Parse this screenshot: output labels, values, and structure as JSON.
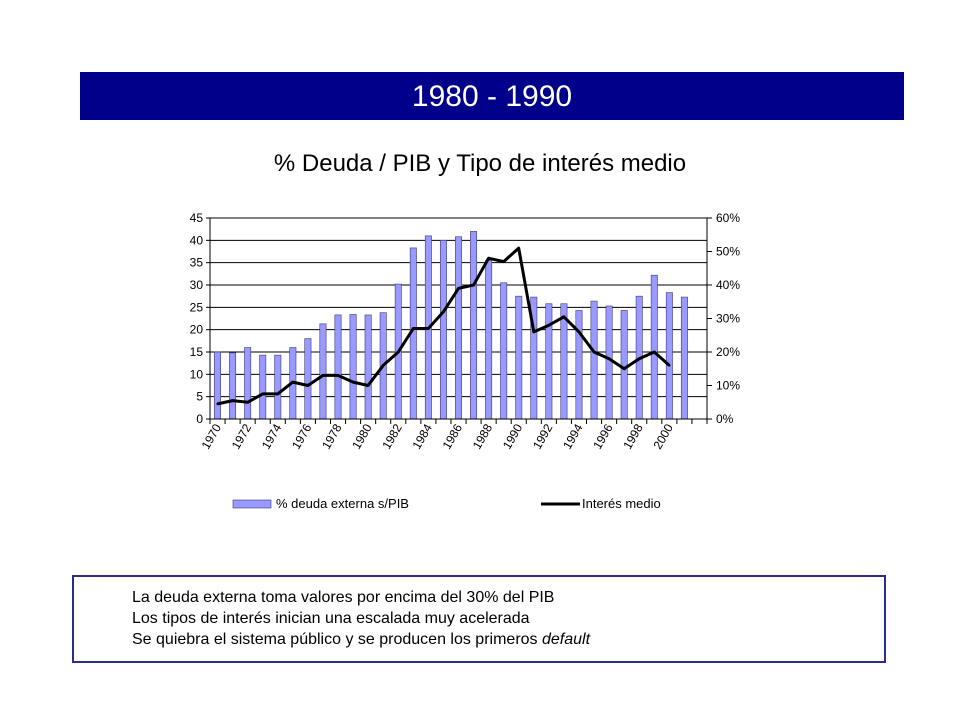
{
  "banner": {
    "title": "1980 - 1990"
  },
  "notes": {
    "line1": "La deuda externa toma valores por encima del 30% del PIB",
    "line2": "Los tipos de interés inician una escalada muy acelerada",
    "line3_prefix": "Se quiebra el sistema público y se producen los primeros ",
    "line3_italic": "default"
  },
  "colors": {
    "banner": "#00008b",
    "bar_fill": "#9999ff",
    "line": "#000000",
    "notes_border": "#2a2d8a"
  },
  "chart_data": {
    "type": "bar+line",
    "title": "% Deuda / PIB y Tipo de interés medio",
    "x": [
      1970,
      1971,
      1972,
      1973,
      1974,
      1975,
      1976,
      1977,
      1978,
      1979,
      1980,
      1981,
      1982,
      1983,
      1984,
      1985,
      1986,
      1987,
      1988,
      1989,
      1990,
      1991,
      1992,
      1993,
      1994,
      1995,
      1996,
      1997,
      1998,
      1999,
      2000,
      2001,
      2002
    ],
    "x_tick_labels": [
      "1970",
      "1972",
      "1974",
      "1976",
      "1978",
      "1980",
      "1982",
      "1984",
      "1986",
      "1988",
      "1990",
      "1992",
      "1994",
      "1996",
      "1998",
      "2000"
    ],
    "series": [
      {
        "name": "% deuda externa s/PIB",
        "type": "bar",
        "axis": "left",
        "values": [
          15,
          14.8,
          16,
          14.3,
          14.3,
          16,
          18,
          21.3,
          23.3,
          23.4,
          23.3,
          23.8,
          30.2,
          38.3,
          41,
          40,
          40.8,
          42,
          35.5,
          30.5,
          27.5,
          27.3,
          25.8,
          25.8,
          24.3,
          26.4,
          25.3,
          24.3,
          27.5,
          32.2,
          28.3,
          27.3,
          null
        ]
      },
      {
        "name": "Interés medio",
        "type": "line",
        "axis": "right",
        "values": [
          0.045,
          0.055,
          0.05,
          0.075,
          0.075,
          0.11,
          0.1,
          0.13,
          0.13,
          0.11,
          0.1,
          0.16,
          0.2,
          0.27,
          0.27,
          0.32,
          0.39,
          0.4,
          0.48,
          0.47,
          0.51,
          0.26,
          0.28,
          0.305,
          0.26,
          0.2,
          0.18,
          0.15,
          0.18,
          0.2,
          0.16,
          null,
          null
        ]
      }
    ],
    "y_left": {
      "min": 0,
      "max": 45,
      "step": 5,
      "ticks": [
        "0",
        "5",
        "10",
        "15",
        "20",
        "25",
        "30",
        "35",
        "40",
        "45"
      ]
    },
    "y_right": {
      "min": 0,
      "max": 0.6,
      "step": 0.1,
      "ticks": [
        "0%",
        "10%",
        "20%",
        "30%",
        "40%",
        "50%",
        "60%"
      ]
    },
    "grid": "horizontal",
    "legend": "bottom"
  }
}
